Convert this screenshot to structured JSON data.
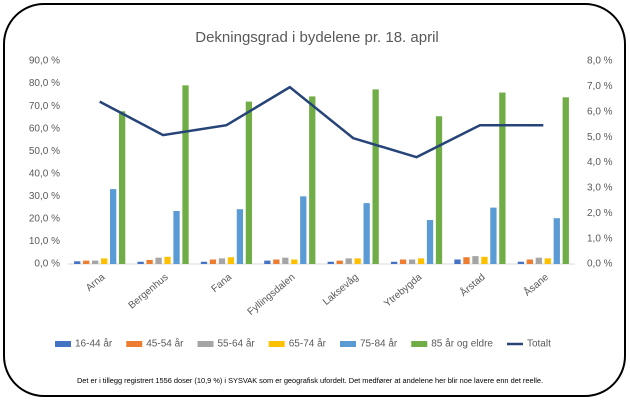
{
  "chart_data": {
    "type": "bar",
    "title": "Dekningsgrad i bydelene pr. 18. april",
    "categories": [
      "Arna",
      "Bergenhus",
      "Fana",
      "Fyllingsdalen",
      "Laksevåg",
      "Ytrebygda",
      "Årstad",
      "Åsane"
    ],
    "series": [
      {
        "name": "16-44 år",
        "color": "#4472c4",
        "values": [
          1.2,
          1.0,
          1.0,
          1.5,
          1.0,
          1.0,
          2.0,
          1.0
        ]
      },
      {
        "name": "45-54 år",
        "color": "#ed7d31",
        "values": [
          1.5,
          1.8,
          2.0,
          2.0,
          1.5,
          2.0,
          3.0,
          2.0
        ]
      },
      {
        "name": "55-64 år",
        "color": "#a5a5a5",
        "values": [
          1.5,
          2.8,
          2.5,
          2.8,
          2.5,
          2.0,
          3.5,
          2.8
        ]
      },
      {
        "name": "65-74 år",
        "color": "#ffc000",
        "values": [
          2.5,
          3.2,
          3.0,
          2.0,
          2.5,
          2.5,
          3.2,
          2.5
        ]
      },
      {
        "name": "75-84 år",
        "color": "#5b9bd5",
        "values": [
          33.2,
          23.5,
          24.3,
          30.0,
          27.0,
          19.5,
          25.0,
          20.3
        ]
      },
      {
        "name": "85 år og eldre",
        "color": "#70ad47",
        "values": [
          67.7,
          79.2,
          72.0,
          74.3,
          77.4,
          65.5,
          76.0,
          73.9
        ]
      },
      {
        "name": "Totalt",
        "color": "#264478",
        "axis": "y2",
        "type": "line",
        "values": [
          6.4,
          5.08,
          5.47,
          6.97,
          4.96,
          4.21,
          5.47,
          5.47
        ]
      }
    ],
    "ylim": [
      0,
      90
    ],
    "yticks": [
      {
        "value": 0,
        "label": "0,0 %"
      },
      {
        "value": 10,
        "label": "10,0 %"
      },
      {
        "value": 20,
        "label": "20,0 %"
      },
      {
        "value": 30,
        "label": "30,0 %"
      },
      {
        "value": 40,
        "label": "40,0 %"
      },
      {
        "value": 50,
        "label": "50,0 %"
      },
      {
        "value": 60,
        "label": "60,0 %"
      },
      {
        "value": 70,
        "label": "70,0 %"
      },
      {
        "value": 80,
        "label": "80,0 %"
      },
      {
        "value": 90,
        "label": "90,0 %"
      }
    ],
    "y2lim": [
      0,
      8
    ],
    "y2ticks": [
      {
        "value": 0,
        "label": "0,0 %"
      },
      {
        "value": 1,
        "label": "1,0 %"
      },
      {
        "value": 2,
        "label": "2,0 %"
      },
      {
        "value": 3,
        "label": "3,0 %"
      },
      {
        "value": 4,
        "label": "4,0 %"
      },
      {
        "value": 5,
        "label": "5,0 %"
      },
      {
        "value": 6,
        "label": "6,0 %"
      },
      {
        "value": 7,
        "label": "7,0 %"
      },
      {
        "value": 8,
        "label": "8,0 %"
      }
    ],
    "grid": false,
    "legend": "bottom",
    "annotation": "Det er i tillegg registrert 1556 doser (10,9 %) i SYSVAK som er geografisk ufordelt. Det medfører at andelene her blir noe lavere enn det reelle."
  }
}
